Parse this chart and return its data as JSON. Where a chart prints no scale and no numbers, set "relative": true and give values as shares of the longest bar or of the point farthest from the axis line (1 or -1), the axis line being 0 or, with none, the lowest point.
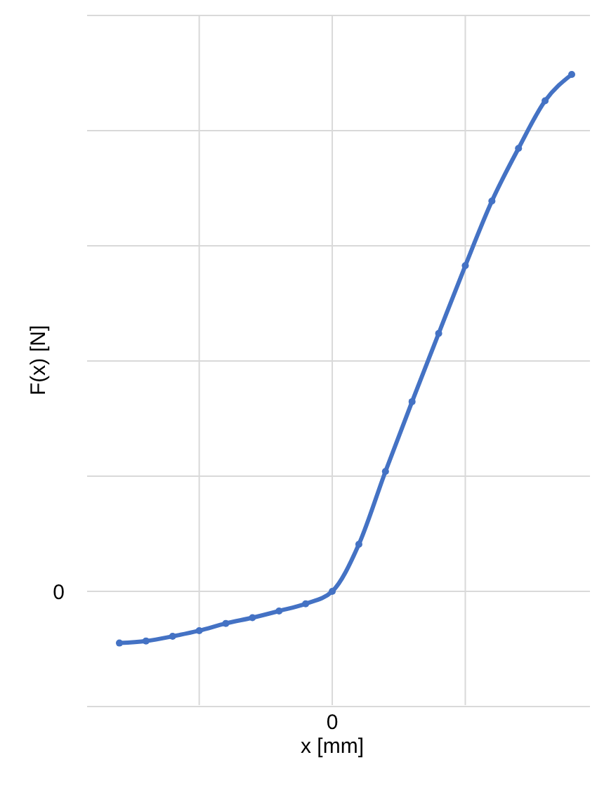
{
  "chart_data": {
    "type": "line",
    "xlabel": "x [mm]",
    "ylabel": "F(x) [N]",
    "relative": true,
    "categories": [
      null,
      null,
      null,
      null,
      null,
      null,
      null,
      null,
      null,
      null,
      null,
      null,
      null,
      null,
      null,
      null,
      null,
      null
    ],
    "series": [
      {
        "color": "#4472c4",
        "values": [
          -0.1,
          -0.096,
          -0.087,
          -0.076,
          -0.062,
          -0.051,
          -0.038,
          -0.024,
          0,
          0.091,
          0.232,
          0.367,
          0.499,
          0.63,
          0.755,
          0.857,
          0.949,
          1
        ]
      }
    ],
    "annotations": [
      "0",
      "0"
    ],
    "grid": true,
    "marker": "circle",
    "line_style": "solid"
  }
}
